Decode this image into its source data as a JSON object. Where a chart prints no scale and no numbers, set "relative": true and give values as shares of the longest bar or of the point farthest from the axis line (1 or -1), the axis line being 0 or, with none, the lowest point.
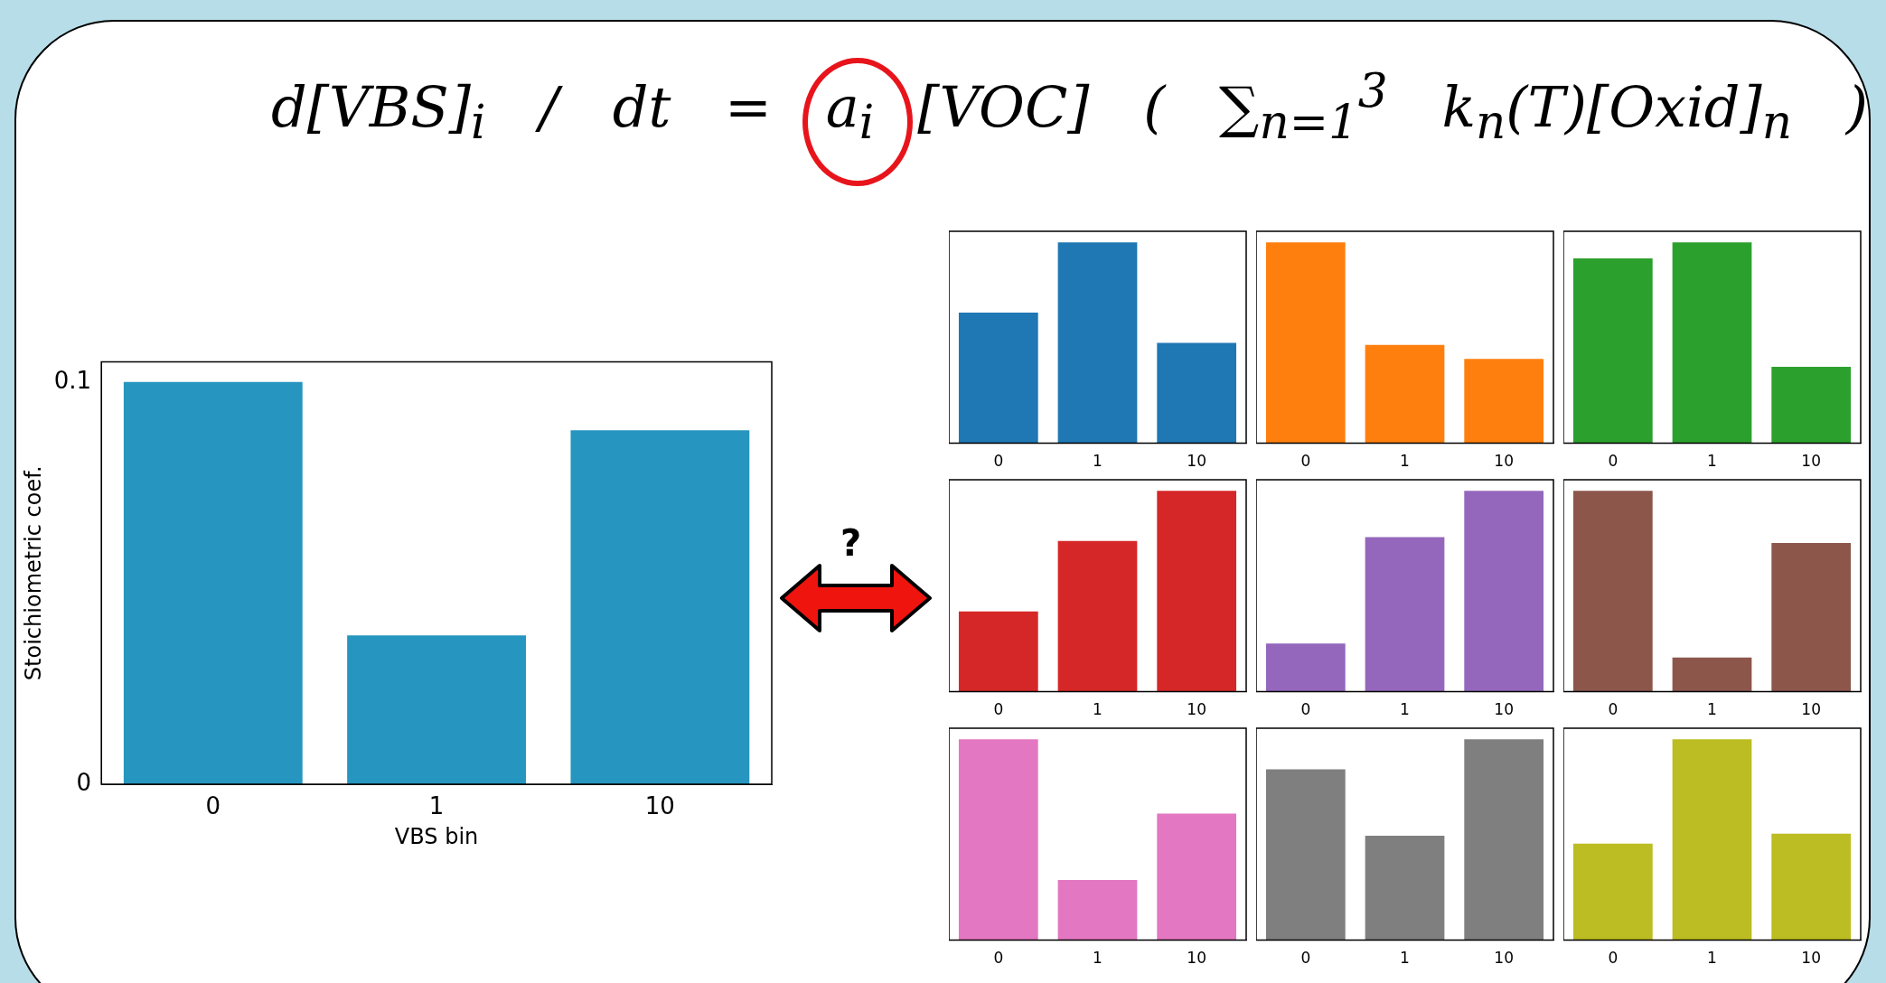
{
  "chart_data": [
    {
      "type": "bar",
      "categories": [
        "0",
        "1",
        "10"
      ],
      "values": [
        0.1,
        0.037,
        0.088
      ],
      "color": "#2695bf",
      "ylim": [
        0,
        0.105
      ],
      "yticks": [
        0,
        0.1
      ],
      "xlabel": "VBS bin",
      "ylabel": "Stoichiometric coef.",
      "annotations": [
        "d[VBS]$_{i}$ / dt = a$_{i}$[VOC] ( ∑$_{n=1}$$^{3}$ k$_{n}$(T)[Oxid]$_{n}$ )",
        "?"
      ]
    },
    {
      "type": "bar",
      "categories": [
        "0",
        "1",
        "10"
      ],
      "values": [
        0.65,
        1,
        0.5
      ],
      "color": "#1f77b4",
      "relative": true
    },
    {
      "type": "bar",
      "categories": [
        "0",
        "1",
        "10"
      ],
      "values": [
        1,
        0.49,
        0.42
      ],
      "color": "#ff7f0e",
      "relative": true
    },
    {
      "type": "bar",
      "categories": [
        "0",
        "1",
        "10"
      ],
      "values": [
        0.92,
        1,
        0.38
      ],
      "color": "#2ca02c",
      "relative": true
    },
    {
      "type": "bar",
      "categories": [
        "0",
        "1",
        "10"
      ],
      "values": [
        0.4,
        0.75,
        1
      ],
      "color": "#d62728",
      "relative": true
    },
    {
      "type": "bar",
      "categories": [
        "0",
        "1",
        "10"
      ],
      "values": [
        0.24,
        0.77,
        1
      ],
      "color": "#9467bd",
      "relative": true
    },
    {
      "type": "bar",
      "categories": [
        "0",
        "1",
        "10"
      ],
      "values": [
        1,
        0.17,
        0.74
      ],
      "color": "#8c564b",
      "relative": true
    },
    {
      "type": "bar",
      "categories": [
        "0",
        "1",
        "10"
      ],
      "values": [
        1,
        0.3,
        0.63
      ],
      "color": "#e377c2",
      "relative": true
    },
    {
      "type": "bar",
      "categories": [
        "0",
        "1",
        "10"
      ],
      "values": [
        0.85,
        0.52,
        1
      ],
      "color": "#7f7f7f",
      "relative": true
    },
    {
      "type": "bar",
      "categories": [
        "0",
        "1",
        "10"
      ],
      "values": [
        0.48,
        1,
        0.53
      ],
      "color": "#bcbd22",
      "relative": true
    }
  ]
}
